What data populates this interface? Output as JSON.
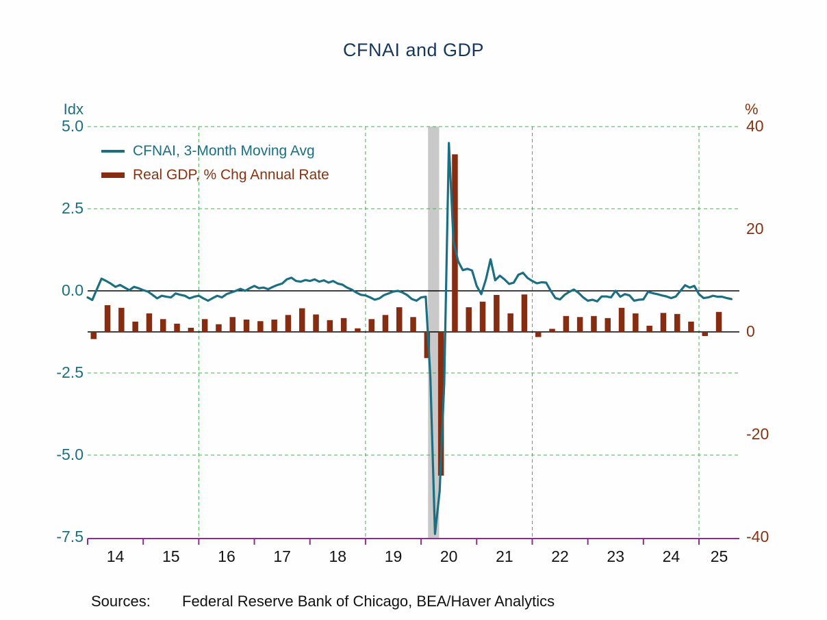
{
  "chart": {
    "title": "CFNAI and GDP",
    "left_axis_unit": "Idx",
    "right_axis_unit": "%"
  },
  "footer": {
    "sources_label": "Sources:",
    "sources_text": "Federal Reserve Bank of Chicago, BEA/Haver Analytics"
  },
  "chart_data": {
    "type": "line+bar",
    "title": "CFNAI and GDP",
    "x_start": "2014-01",
    "x_end": "2025-08",
    "left_axis": {
      "unit": "Idx",
      "ylim": [
        -7.5,
        5.0
      ],
      "ticks": [
        {
          "label": "5.0",
          "value": 5.0
        },
        {
          "label": "2.5",
          "value": 2.5
        },
        {
          "label": "0.0",
          "value": 0.0
        },
        {
          "label": "-2.5",
          "value": -2.5
        },
        {
          "label": "-5.0",
          "value": -5.0
        },
        {
          "label": "-7.5",
          "value": -7.5
        }
      ],
      "gridline_values": [
        5.0,
        2.5,
        -2.5,
        -5.0
      ],
      "zero_line": 0.0
    },
    "right_axis": {
      "unit": "%",
      "ylim": [
        -40,
        40
      ],
      "ticks": [
        {
          "label": "40",
          "value": 40
        },
        {
          "label": "20",
          "value": 20
        },
        {
          "label": "0",
          "value": 0
        },
        {
          "label": "-20",
          "value": -20
        },
        {
          "label": "-40",
          "value": -40
        }
      ],
      "zero_line": 0.0
    },
    "x_axis": {
      "year_labels": [
        "14",
        "15",
        "16",
        "17",
        "18",
        "19",
        "20",
        "21",
        "22",
        "23",
        "24",
        "25"
      ],
      "gridline_years": [
        2016,
        2019,
        2022,
        2025
      ]
    },
    "recession_band": {
      "start": "2020-02",
      "end": "2020-04"
    },
    "series": [
      {
        "name": "CFNAI, 3-Month Moving Avg",
        "type": "line",
        "axis": "left",
        "frequency": "monthly",
        "color": "#1b6f82",
        "values": [
          -0.2,
          -0.28,
          0.05,
          0.37,
          0.3,
          0.22,
          0.12,
          0.18,
          0.1,
          0.02,
          0.12,
          0.08,
          0.02,
          -0.02,
          -0.12,
          -0.23,
          -0.15,
          -0.18,
          -0.2,
          -0.08,
          -0.12,
          -0.15,
          -0.23,
          -0.18,
          -0.15,
          -0.23,
          -0.3,
          -0.22,
          -0.15,
          -0.2,
          -0.1,
          -0.05,
          0.0,
          0.06,
          0.0,
          0.08,
          0.15,
          0.08,
          0.1,
          0.05,
          0.12,
          0.18,
          0.22,
          0.35,
          0.4,
          0.3,
          0.28,
          0.33,
          0.3,
          0.35,
          0.28,
          0.32,
          0.25,
          0.3,
          0.22,
          0.19,
          0.1,
          0.04,
          -0.05,
          -0.12,
          -0.14,
          -0.2,
          -0.27,
          -0.23,
          -0.13,
          -0.08,
          -0.02,
          0.0,
          -0.05,
          -0.13,
          -0.25,
          -0.3,
          -0.2,
          -0.18,
          -2.6,
          -7.4,
          -6.1,
          -2.8,
          4.5,
          1.5,
          0.9,
          0.63,
          0.67,
          0.62,
          0.15,
          -0.1,
          0.35,
          0.96,
          0.32,
          0.46,
          0.35,
          0.21,
          0.25,
          0.49,
          0.55,
          0.39,
          0.3,
          0.23,
          0.26,
          0.25,
          0.0,
          -0.22,
          -0.26,
          -0.12,
          -0.03,
          0.04,
          -0.06,
          -0.2,
          -0.3,
          -0.27,
          -0.32,
          -0.17,
          -0.17,
          -0.2,
          0.0,
          -0.18,
          -0.1,
          -0.14,
          -0.3,
          -0.27,
          -0.26,
          -0.03,
          -0.07,
          -0.1,
          -0.14,
          -0.17,
          -0.22,
          -0.17,
          0.0,
          0.17,
          0.1,
          0.15,
          -0.1,
          -0.22,
          -0.2,
          -0.15,
          -0.18,
          -0.18,
          -0.22,
          -0.25
        ]
      },
      {
        "name": "Real GDP, % Chg Annual Rate",
        "type": "bar",
        "axis": "right",
        "frequency": "quarterly",
        "color": "#862c10",
        "values": [
          -1.4,
          5.2,
          4.7,
          2.0,
          3.6,
          2.5,
          1.6,
          0.8,
          2.5,
          1.5,
          2.9,
          2.4,
          2.1,
          2.4,
          3.3,
          4.6,
          3.4,
          2.3,
          2.7,
          0.7,
          2.5,
          3.3,
          4.8,
          2.9,
          -5.1,
          -28.0,
          34.6,
          4.8,
          5.9,
          7.2,
          3.6,
          7.3,
          -1.0,
          0.6,
          3.1,
          2.9,
          3.1,
          2.7,
          4.7,
          3.6,
          1.2,
          3.7,
          3.5,
          2.0,
          -0.8,
          3.9
        ]
      }
    ],
    "colors": {
      "background": "#fdfefd",
      "title": "#17365d",
      "cfnai_line": "#1b6f82",
      "gdp_bar": "#862c10",
      "left_axis_text": "#1b6f82",
      "right_axis_text": "#8a3210",
      "grid_green": "#44b14e",
      "x_axis": "#8b2d8b",
      "zero_line": "#000000",
      "recession_band": "#c9c9c9",
      "year_text": "#141414"
    },
    "legend_position": "top-left-inside",
    "grid": "dashed-green"
  }
}
